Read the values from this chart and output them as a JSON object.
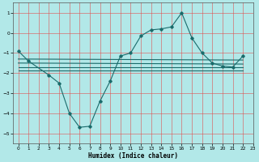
{
  "title": "",
  "xlabel": "Humidex (Indice chaleur)",
  "bg_color": "#b2e8e8",
  "grid_color": "#e05050",
  "line_color": "#1a6b6b",
  "xlim": [
    -0.5,
    23
  ],
  "ylim": [
    -5.5,
    1.5
  ],
  "xticks": [
    0,
    1,
    2,
    3,
    4,
    5,
    6,
    7,
    8,
    9,
    10,
    11,
    12,
    13,
    14,
    15,
    16,
    17,
    18,
    19,
    20,
    21,
    22,
    23
  ],
  "yticks": [
    -5,
    -4,
    -3,
    -2,
    -1,
    0,
    1
  ],
  "curve1_x": [
    0,
    1,
    3,
    4,
    5,
    6,
    7,
    8,
    9,
    10,
    11,
    12,
    13,
    14,
    15,
    16,
    17,
    18,
    19,
    20,
    21,
    22
  ],
  "curve1_y": [
    -0.9,
    -1.4,
    -2.1,
    -2.5,
    -4.0,
    -4.7,
    -4.65,
    -3.4,
    -2.4,
    -1.15,
    -1.0,
    -0.15,
    0.15,
    0.2,
    0.3,
    1.0,
    -0.25,
    -1.0,
    -1.5,
    -1.65,
    -1.7,
    -1.15
  ],
  "curve2_x": [
    0,
    22
  ],
  "curve2_y": [
    -1.3,
    -1.35
  ],
  "curve3_x": [
    0,
    22
  ],
  "curve3_y": [
    -1.5,
    -1.55
  ],
  "curve4_x": [
    0,
    22
  ],
  "curve4_y": [
    -1.7,
    -1.7
  ],
  "curve5_x": [
    0,
    22
  ],
  "curve5_y": [
    -1.85,
    -1.85
  ]
}
